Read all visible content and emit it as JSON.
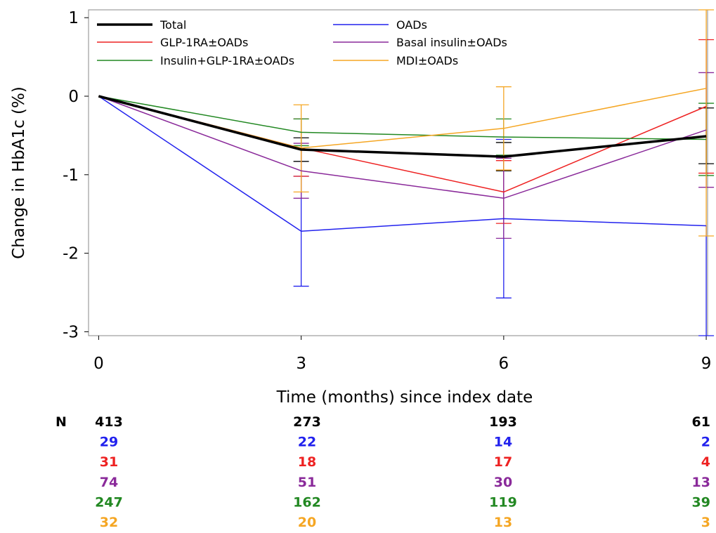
{
  "chart_data": {
    "type": "line",
    "xlabel": "Time (months) since index date",
    "ylabel": "Change in HbA1c (%)",
    "x": [
      0,
      3,
      6,
      9
    ],
    "x_ticks": [
      "0",
      "3",
      "6",
      "9"
    ],
    "y_ticks": [
      "1",
      "0",
      "-1",
      "-2",
      "-3"
    ],
    "xlim": [
      -0.15,
      9.02
    ],
    "ylim": [
      -3.05,
      1.1
    ],
    "legend_placement": "top, inside plot",
    "series": [
      {
        "name": "Total",
        "color": "#000000",
        "width": 3.5,
        "values": [
          0,
          -0.68,
          -0.77,
          -0.51
        ],
        "lower": [
          null,
          -0.83,
          -0.95,
          -0.86
        ],
        "upper": [
          null,
          -0.53,
          -0.59,
          -0.15
        ]
      },
      {
        "name": "OADs",
        "color": "#2222ee",
        "width": 1.5,
        "values": [
          0,
          -1.72,
          -1.56,
          -1.65
        ],
        "lower": [
          null,
          -2.42,
          -2.57,
          -3.05
        ],
        "upper": [
          null,
          -1.02,
          -0.55,
          null
        ]
      },
      {
        "name": "GLP-1RA±OADs",
        "color": "#ee2222",
        "width": 1.5,
        "values": [
          0,
          -0.66,
          -1.22,
          -0.13
        ],
        "lower": [
          null,
          -1.02,
          -1.62,
          -0.98
        ],
        "upper": [
          null,
          -0.29,
          -0.82,
          0.72
        ]
      },
      {
        "name": "Basal insulin±OADs",
        "color": "#8a2a9a",
        "width": 1.5,
        "values": [
          0,
          -0.95,
          -1.3,
          -0.43
        ],
        "lower": [
          null,
          -1.3,
          -1.81,
          -1.16
        ],
        "upper": [
          null,
          -0.6,
          -0.79,
          0.3
        ]
      },
      {
        "name": "Insulin+GLP-1RA±OADs",
        "color": "#228822",
        "width": 1.5,
        "values": [
          0,
          -0.46,
          -0.52,
          -0.55
        ],
        "lower": [
          null,
          -0.63,
          -0.75,
          -1.01
        ],
        "upper": [
          null,
          -0.29,
          -0.29,
          -0.09
        ]
      },
      {
        "name": "MDI±OADs",
        "color": "#f5a623",
        "width": 1.5,
        "values": [
          0,
          -0.66,
          -0.41,
          0.1
        ],
        "lower": [
          null,
          -1.22,
          -0.94,
          -1.78
        ],
        "upper": [
          null,
          -0.11,
          0.12,
          1.1
        ]
      }
    ],
    "n_table": {
      "label": "N",
      "rows": [
        {
          "color": "#000000",
          "values": [
            "413",
            "273",
            "193",
            "61"
          ]
        },
        {
          "color": "#2222ee",
          "values": [
            "29",
            "22",
            "14",
            "2"
          ]
        },
        {
          "color": "#ee2222",
          "values": [
            "31",
            "18",
            "17",
            "4"
          ]
        },
        {
          "color": "#8a2a9a",
          "values": [
            "74",
            "51",
            "30",
            "13"
          ]
        },
        {
          "color": "#228822",
          "values": [
            "247",
            "162",
            "119",
            "39"
          ]
        },
        {
          "color": "#f5a623",
          "values": [
            "32",
            "20",
            "13",
            "3"
          ]
        }
      ]
    }
  }
}
